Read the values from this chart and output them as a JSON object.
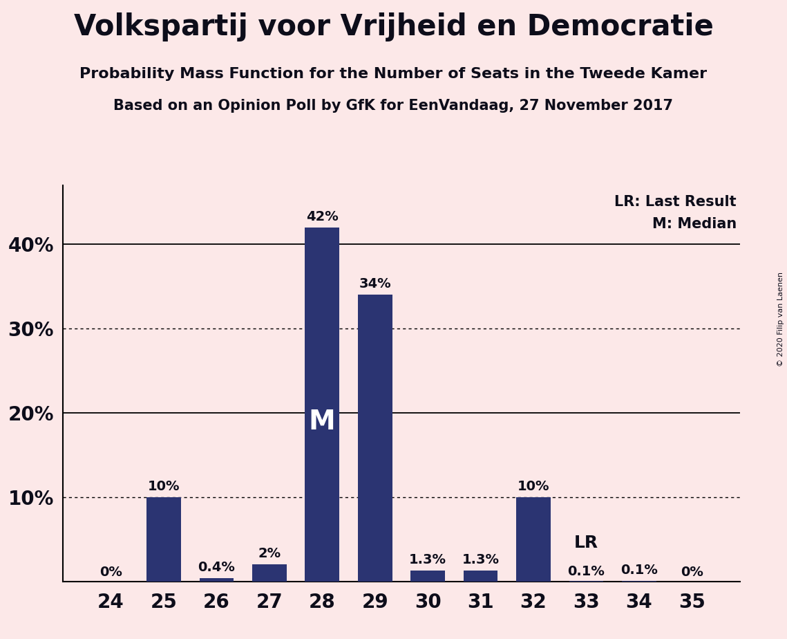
{
  "title": "Volkspartij voor Vrijheid en Democratie",
  "subtitle1": "Probability Mass Function for the Number of Seats in the Tweede Kamer",
  "subtitle2": "Based on an Opinion Poll by GfK for EenVandaag, 27 November 2017",
  "copyright": "© 2020 Filip van Laenen",
  "categories": [
    24,
    25,
    26,
    27,
    28,
    29,
    30,
    31,
    32,
    33,
    34,
    35
  ],
  "values": [
    0,
    10,
    0.4,
    2,
    42,
    34,
    1.3,
    1.3,
    10,
    0.1,
    0.1,
    0
  ],
  "labels": [
    "0%",
    "10%",
    "0.4%",
    "2%",
    "42%",
    "34%",
    "1.3%",
    "1.3%",
    "10%",
    "0.1%",
    "0.1%",
    "0%"
  ],
  "bar_color": "#2b3472",
  "background_color": "#fce8e8",
  "axes_background": "#fce8e8",
  "title_color": "#0d0d1a",
  "text_color": "#0d0d1a",
  "median_bar": 28,
  "lr_bar": 33,
  "ylim": [
    0,
    47
  ],
  "yticks": [
    10,
    20,
    30,
    40
  ],
  "ytick_labels": [
    "10%",
    "20%",
    "30%",
    "40%"
  ],
  "legend_lr": "LR: Last Result",
  "legend_m": "M: Median",
  "median_label": "M",
  "lr_label": "LR",
  "dotted_hlines": [
    10,
    30
  ],
  "solid_hlines": [
    20,
    40
  ],
  "bar_width": 0.65
}
